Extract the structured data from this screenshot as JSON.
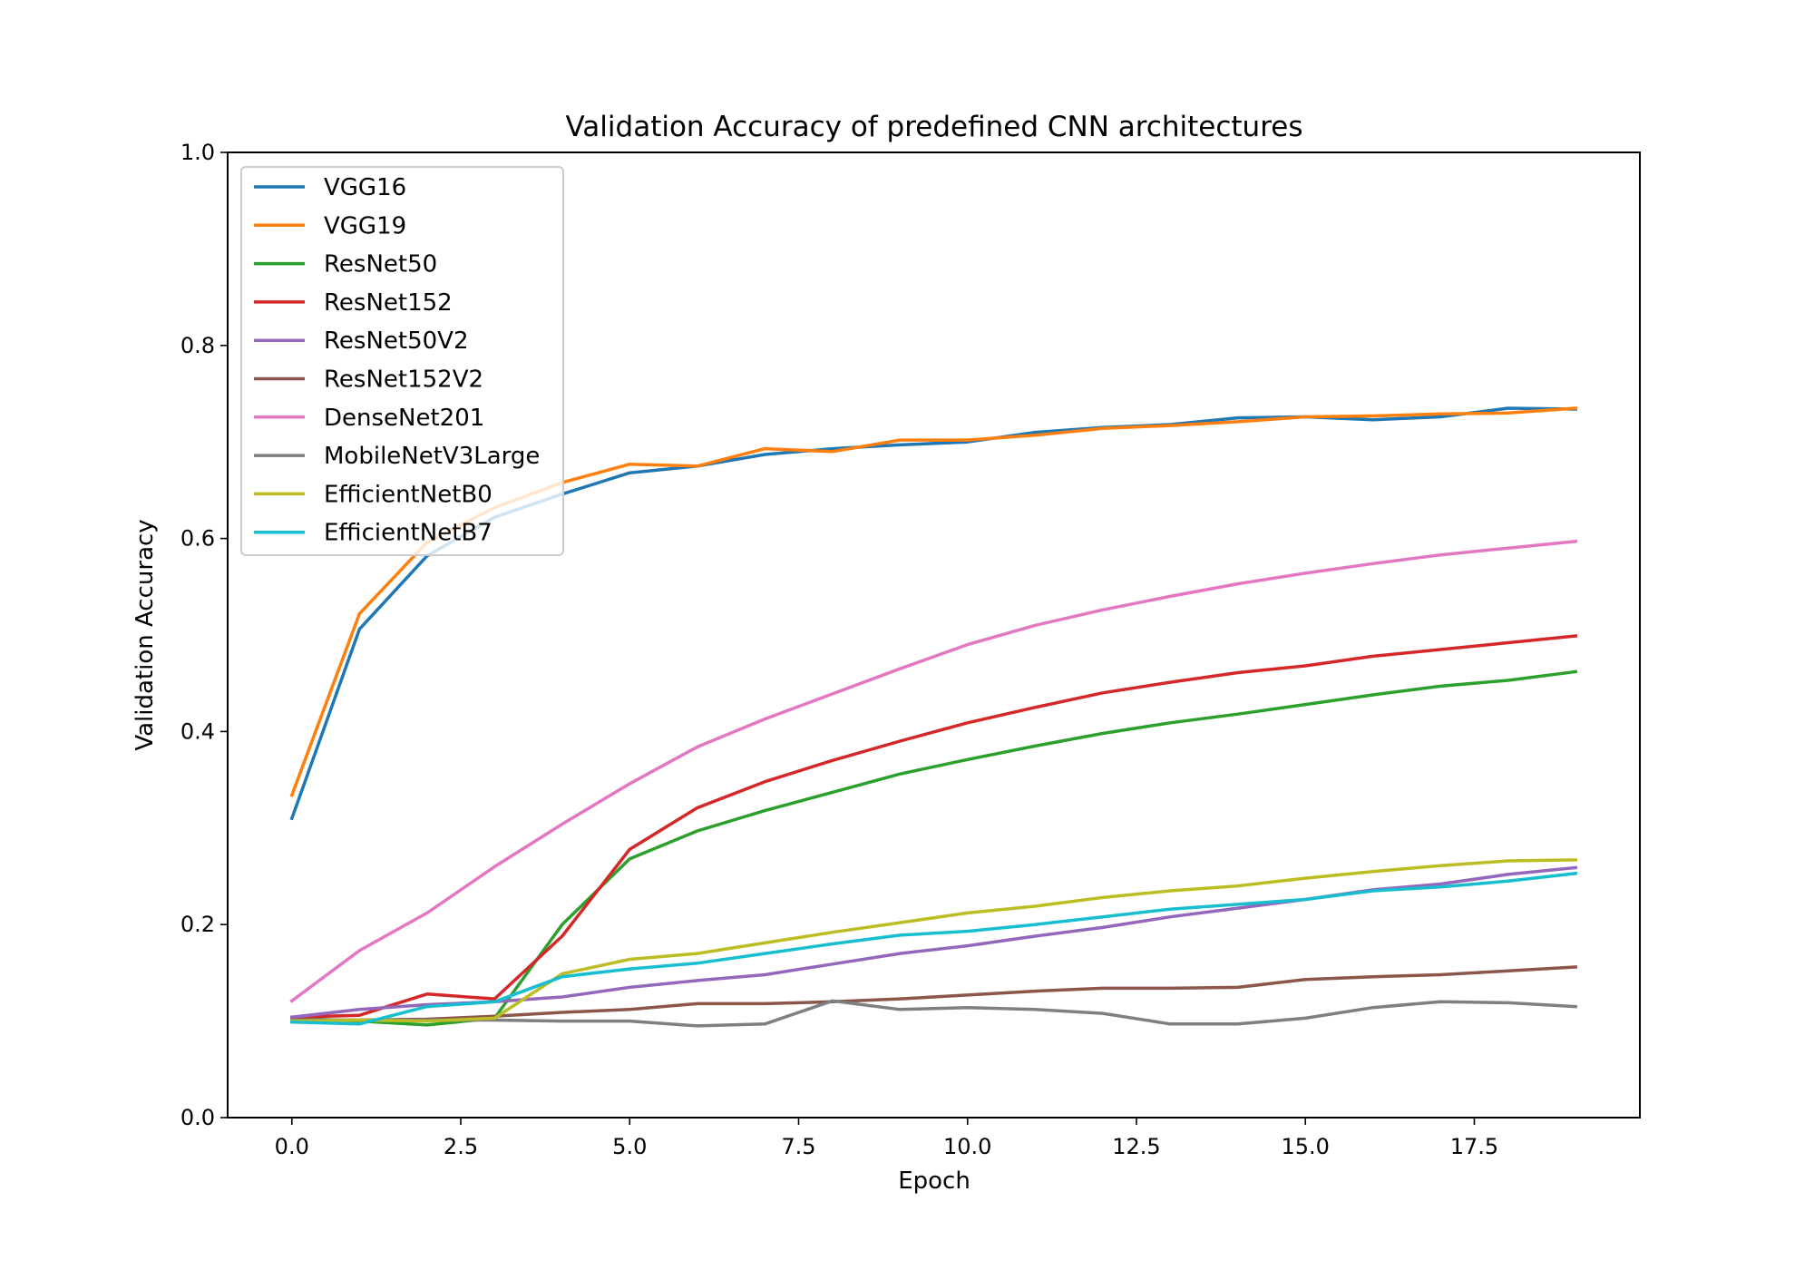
{
  "chart_data": {
    "type": "line",
    "title": "Validation Accuracy of predefined CNN architectures",
    "xlabel": "Epoch",
    "ylabel": "Validation Accuracy",
    "xlim": [
      -0.95,
      19.95
    ],
    "ylim": [
      0.0,
      1.0
    ],
    "xticks": [
      "0.0",
      "2.5",
      "5.0",
      "7.5",
      "10.0",
      "12.5",
      "15.0",
      "17.5"
    ],
    "yticks": [
      "0.0",
      "0.2",
      "0.4",
      "0.6",
      "0.8",
      "1.0"
    ],
    "grid": false,
    "legend_position": "upper-left",
    "x": [
      0,
      1,
      2,
      3,
      4,
      5,
      6,
      7,
      8,
      9,
      10,
      11,
      12,
      13,
      14,
      15,
      16,
      17,
      18,
      19
    ],
    "series": [
      {
        "name": "VGG16",
        "color": "#1f77b4",
        "values": [
          0.31,
          0.506,
          0.582,
          0.622,
          0.646,
          0.668,
          0.675,
          0.687,
          0.693,
          0.697,
          0.7,
          0.71,
          0.715,
          0.718,
          0.725,
          0.726,
          0.723,
          0.726,
          0.735,
          0.734
        ]
      },
      {
        "name": "VGG19",
        "color": "#ff7f0e",
        "values": [
          0.334,
          0.522,
          0.596,
          0.632,
          0.658,
          0.677,
          0.675,
          0.693,
          0.69,
          0.702,
          0.702,
          0.707,
          0.714,
          0.717,
          0.721,
          0.726,
          0.727,
          0.729,
          0.73,
          0.735
        ]
      },
      {
        "name": "ResNet50",
        "color": "#2ca02c",
        "values": [
          0.103,
          0.1,
          0.096,
          0.103,
          0.2,
          0.268,
          0.297,
          0.318,
          0.337,
          0.356,
          0.371,
          0.385,
          0.398,
          0.409,
          0.418,
          0.428,
          0.438,
          0.447,
          0.453,
          0.462
        ]
      },
      {
        "name": "ResNet152",
        "color": "#d62728",
        "values": [
          0.104,
          0.106,
          0.128,
          0.123,
          0.188,
          0.278,
          0.321,
          0.348,
          0.37,
          0.39,
          0.409,
          0.425,
          0.44,
          0.451,
          0.461,
          0.468,
          0.478,
          0.485,
          0.492,
          0.499
        ]
      },
      {
        "name": "ResNet50V2",
        "color": "#9467bd",
        "values": [
          0.104,
          0.112,
          0.117,
          0.12,
          0.125,
          0.135,
          0.142,
          0.148,
          0.159,
          0.17,
          0.178,
          0.188,
          0.197,
          0.208,
          0.217,
          0.226,
          0.236,
          0.242,
          0.252,
          0.259
        ]
      },
      {
        "name": "ResNet152V2",
        "color": "#8c564b",
        "values": [
          0.101,
          0.101,
          0.102,
          0.105,
          0.109,
          0.112,
          0.118,
          0.118,
          0.12,
          0.123,
          0.127,
          0.131,
          0.134,
          0.134,
          0.135,
          0.143,
          0.146,
          0.148,
          0.152,
          0.156
        ]
      },
      {
        "name": "DenseNet201",
        "color": "#e377c2",
        "values": [
          0.121,
          0.173,
          0.212,
          0.26,
          0.304,
          0.346,
          0.384,
          0.413,
          0.439,
          0.465,
          0.49,
          0.51,
          0.526,
          0.54,
          0.553,
          0.564,
          0.574,
          0.583,
          0.59,
          0.597
        ]
      },
      {
        "name": "MobileNetV3Large",
        "color": "#7f7f7f",
        "values": [
          0.101,
          0.101,
          0.101,
          0.101,
          0.1,
          0.1,
          0.095,
          0.097,
          0.121,
          0.112,
          0.114,
          0.112,
          0.108,
          0.097,
          0.097,
          0.103,
          0.114,
          0.12,
          0.119,
          0.115
        ]
      },
      {
        "name": "EfficientNetB0",
        "color": "#bcbd22",
        "values": [
          0.1,
          0.101,
          0.1,
          0.103,
          0.149,
          0.164,
          0.17,
          0.181,
          0.192,
          0.202,
          0.212,
          0.219,
          0.228,
          0.235,
          0.24,
          0.248,
          0.255,
          0.261,
          0.266,
          0.267
        ]
      },
      {
        "name": "EfficientNetB7",
        "color": "#17becf",
        "values": [
          0.099,
          0.097,
          0.115,
          0.12,
          0.146,
          0.154,
          0.16,
          0.17,
          0.18,
          0.189,
          0.193,
          0.2,
          0.208,
          0.216,
          0.221,
          0.226,
          0.235,
          0.239,
          0.245,
          0.253
        ]
      }
    ]
  }
}
